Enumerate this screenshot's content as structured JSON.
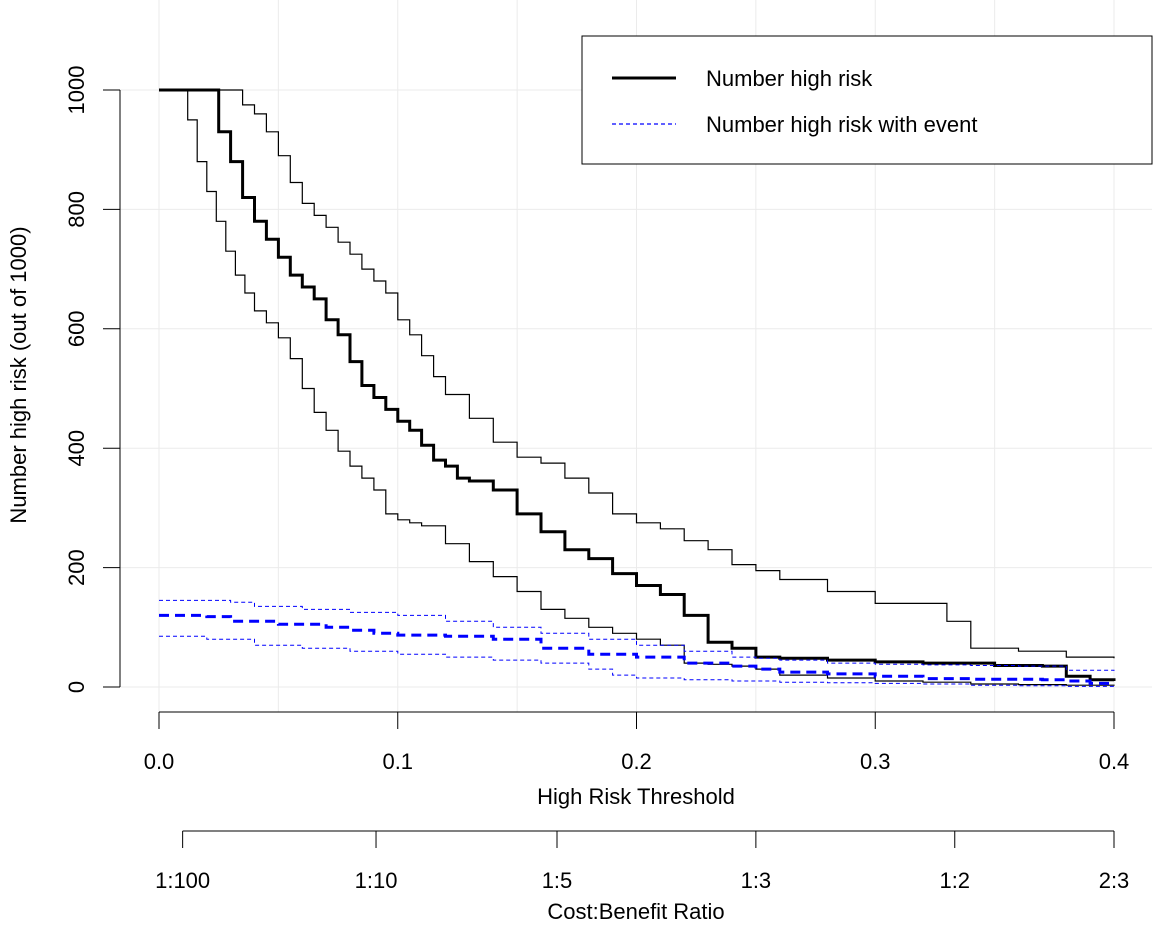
{
  "chart_data": {
    "type": "line",
    "title": "",
    "xlabel": "High Risk Threshold",
    "ylabel": "Number high risk (out of 1000)",
    "xlim": [
      0,
      0.4
    ],
    "ylim": [
      0,
      1000
    ],
    "x_ticks": [
      0,
      0.1,
      0.2,
      0.3,
      0.4
    ],
    "x_tick_labels": [
      "0.0",
      "0.1",
      "0.2",
      "0.3",
      "0.4"
    ],
    "y_ticks": [
      0,
      200,
      400,
      600,
      800,
      1000
    ],
    "y_tick_labels": [
      "0",
      "200",
      "400",
      "600",
      "800",
      "1000"
    ],
    "grid": true,
    "legend": {
      "position": "top-right",
      "entries": [
        {
          "label": "Number high risk",
          "color": "#000000",
          "style": "solid"
        },
        {
          "label": "Number high risk with event",
          "color": "#0000ff",
          "style": "dashed"
        }
      ]
    },
    "secondary_axis": {
      "label": "Cost:Benefit Ratio",
      "ticks": [
        0.0099,
        0.0909,
        0.1667,
        0.25,
        0.3333,
        0.4
      ],
      "tick_labels": [
        "1:100",
        "1:10",
        "1:5",
        "1:3",
        "1:2",
        "2:3"
      ]
    },
    "series": [
      {
        "name": "Number high risk",
        "color": "#000000",
        "style": "solid",
        "x": [
          0,
          0.02,
          0.025,
          0.03,
          0.035,
          0.04,
          0.045,
          0.05,
          0.055,
          0.06,
          0.065,
          0.07,
          0.075,
          0.08,
          0.085,
          0.09,
          0.095,
          0.1,
          0.105,
          0.11,
          0.115,
          0.12,
          0.125,
          0.13,
          0.14,
          0.15,
          0.16,
          0.17,
          0.18,
          0.19,
          0.2,
          0.21,
          0.22,
          0.23,
          0.24,
          0.25,
          0.26,
          0.28,
          0.3,
          0.32,
          0.35,
          0.37,
          0.38,
          0.39,
          0.4
        ],
        "y": [
          1000,
          1000,
          930,
          880,
          820,
          780,
          750,
          720,
          690,
          670,
          650,
          615,
          590,
          545,
          505,
          485,
          465,
          445,
          430,
          405,
          380,
          370,
          350,
          345,
          330,
          290,
          260,
          230,
          215,
          190,
          170,
          155,
          120,
          75,
          65,
          50,
          48,
          45,
          42,
          40,
          36,
          35,
          18,
          12,
          10
        ]
      },
      {
        "name": "",
        "color": "#000000",
        "style": "solid-thin",
        "x": [
          0,
          0.025,
          0.035,
          0.04,
          0.045,
          0.05,
          0.055,
          0.06,
          0.065,
          0.07,
          0.075,
          0.08,
          0.085,
          0.09,
          0.095,
          0.1,
          0.105,
          0.11,
          0.115,
          0.12,
          0.13,
          0.14,
          0.15,
          0.16,
          0.17,
          0.18,
          0.19,
          0.2,
          0.21,
          0.22,
          0.23,
          0.24,
          0.25,
          0.26,
          0.28,
          0.3,
          0.31,
          0.32,
          0.33,
          0.34,
          0.36,
          0.38,
          0.4
        ],
        "y": [
          1000,
          1000,
          975,
          960,
          930,
          890,
          845,
          810,
          790,
          770,
          745,
          725,
          700,
          680,
          660,
          615,
          590,
          555,
          520,
          490,
          450,
          410,
          385,
          375,
          350,
          325,
          290,
          275,
          265,
          245,
          230,
          205,
          195,
          180,
          160,
          140,
          140,
          140,
          110,
          65,
          60,
          50,
          48
        ]
      },
      {
        "name": "",
        "color": "#000000",
        "style": "solid-thin",
        "x": [
          0,
          0.008,
          0.012,
          0.016,
          0.02,
          0.024,
          0.028,
          0.032,
          0.036,
          0.04,
          0.045,
          0.05,
          0.055,
          0.06,
          0.065,
          0.07,
          0.075,
          0.08,
          0.085,
          0.09,
          0.095,
          0.1,
          0.105,
          0.11,
          0.12,
          0.13,
          0.14,
          0.15,
          0.16,
          0.17,
          0.18,
          0.19,
          0.2,
          0.21,
          0.22,
          0.23,
          0.24,
          0.25,
          0.26,
          0.28,
          0.3,
          0.32,
          0.34,
          0.36,
          0.38,
          0.4
        ],
        "y": [
          1000,
          1000,
          950,
          880,
          830,
          780,
          730,
          690,
          660,
          630,
          610,
          585,
          550,
          500,
          460,
          430,
          395,
          370,
          350,
          330,
          290,
          280,
          275,
          270,
          240,
          210,
          185,
          160,
          130,
          115,
          100,
          90,
          80,
          70,
          40,
          38,
          35,
          30,
          20,
          15,
          10,
          8,
          5,
          4,
          3,
          2
        ]
      },
      {
        "name": "Number high risk with event",
        "color": "#0000ff",
        "style": "dashed",
        "x": [
          0,
          0.02,
          0.03,
          0.05,
          0.07,
          0.08,
          0.09,
          0.1,
          0.12,
          0.14,
          0.16,
          0.18,
          0.2,
          0.22,
          0.24,
          0.25,
          0.26,
          0.28,
          0.3,
          0.32,
          0.34,
          0.37,
          0.38,
          0.39,
          0.4
        ],
        "y": [
          120,
          118,
          110,
          105,
          100,
          95,
          90,
          87,
          85,
          80,
          65,
          55,
          50,
          40,
          35,
          30,
          25,
          22,
          18,
          14,
          13,
          12,
          10,
          6,
          5
        ]
      },
      {
        "name": "",
        "color": "#0000ff",
        "style": "dotted-thin",
        "x": [
          0,
          0.03,
          0.04,
          0.06,
          0.08,
          0.1,
          0.12,
          0.14,
          0.16,
          0.18,
          0.2,
          0.22,
          0.24,
          0.25,
          0.26,
          0.28,
          0.3,
          0.32,
          0.34,
          0.36,
          0.38,
          0.4
        ],
        "y": [
          145,
          142,
          135,
          130,
          125,
          120,
          110,
          100,
          90,
          80,
          70,
          60,
          50,
          48,
          45,
          40,
          38,
          37,
          36,
          35,
          28,
          27
        ]
      },
      {
        "name": "",
        "color": "#0000ff",
        "style": "dotted-thin",
        "x": [
          0,
          0.02,
          0.04,
          0.06,
          0.08,
          0.1,
          0.12,
          0.14,
          0.16,
          0.18,
          0.19,
          0.2,
          0.22,
          0.24,
          0.26,
          0.28,
          0.3,
          0.32,
          0.34,
          0.36,
          0.38,
          0.4
        ],
        "y": [
          85,
          80,
          70,
          65,
          60,
          55,
          50,
          45,
          40,
          30,
          20,
          15,
          12,
          10,
          8,
          7,
          6,
          5,
          3,
          2,
          1,
          1
        ]
      }
    ]
  }
}
